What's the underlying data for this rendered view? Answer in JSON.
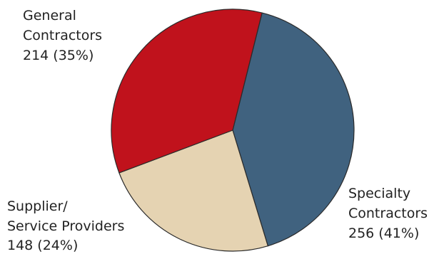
{
  "chart_data": {
    "type": "pie",
    "title": "",
    "legend": "none",
    "slices": [
      {
        "name_lines": [
          "General",
          "Contractors"
        ],
        "value": 214,
        "value_label": "214 (35%)",
        "color": "#c0121c"
      },
      {
        "name_lines": [
          "Specialty",
          "Contractors"
        ],
        "value": 256,
        "value_label": "256 (41%)",
        "color": "#40627f"
      },
      {
        "name_lines": [
          "Supplier/",
          "Service Providers"
        ],
        "value": 148,
        "value_label": "148 (24%)",
        "color": "#e5d3b2"
      }
    ]
  }
}
